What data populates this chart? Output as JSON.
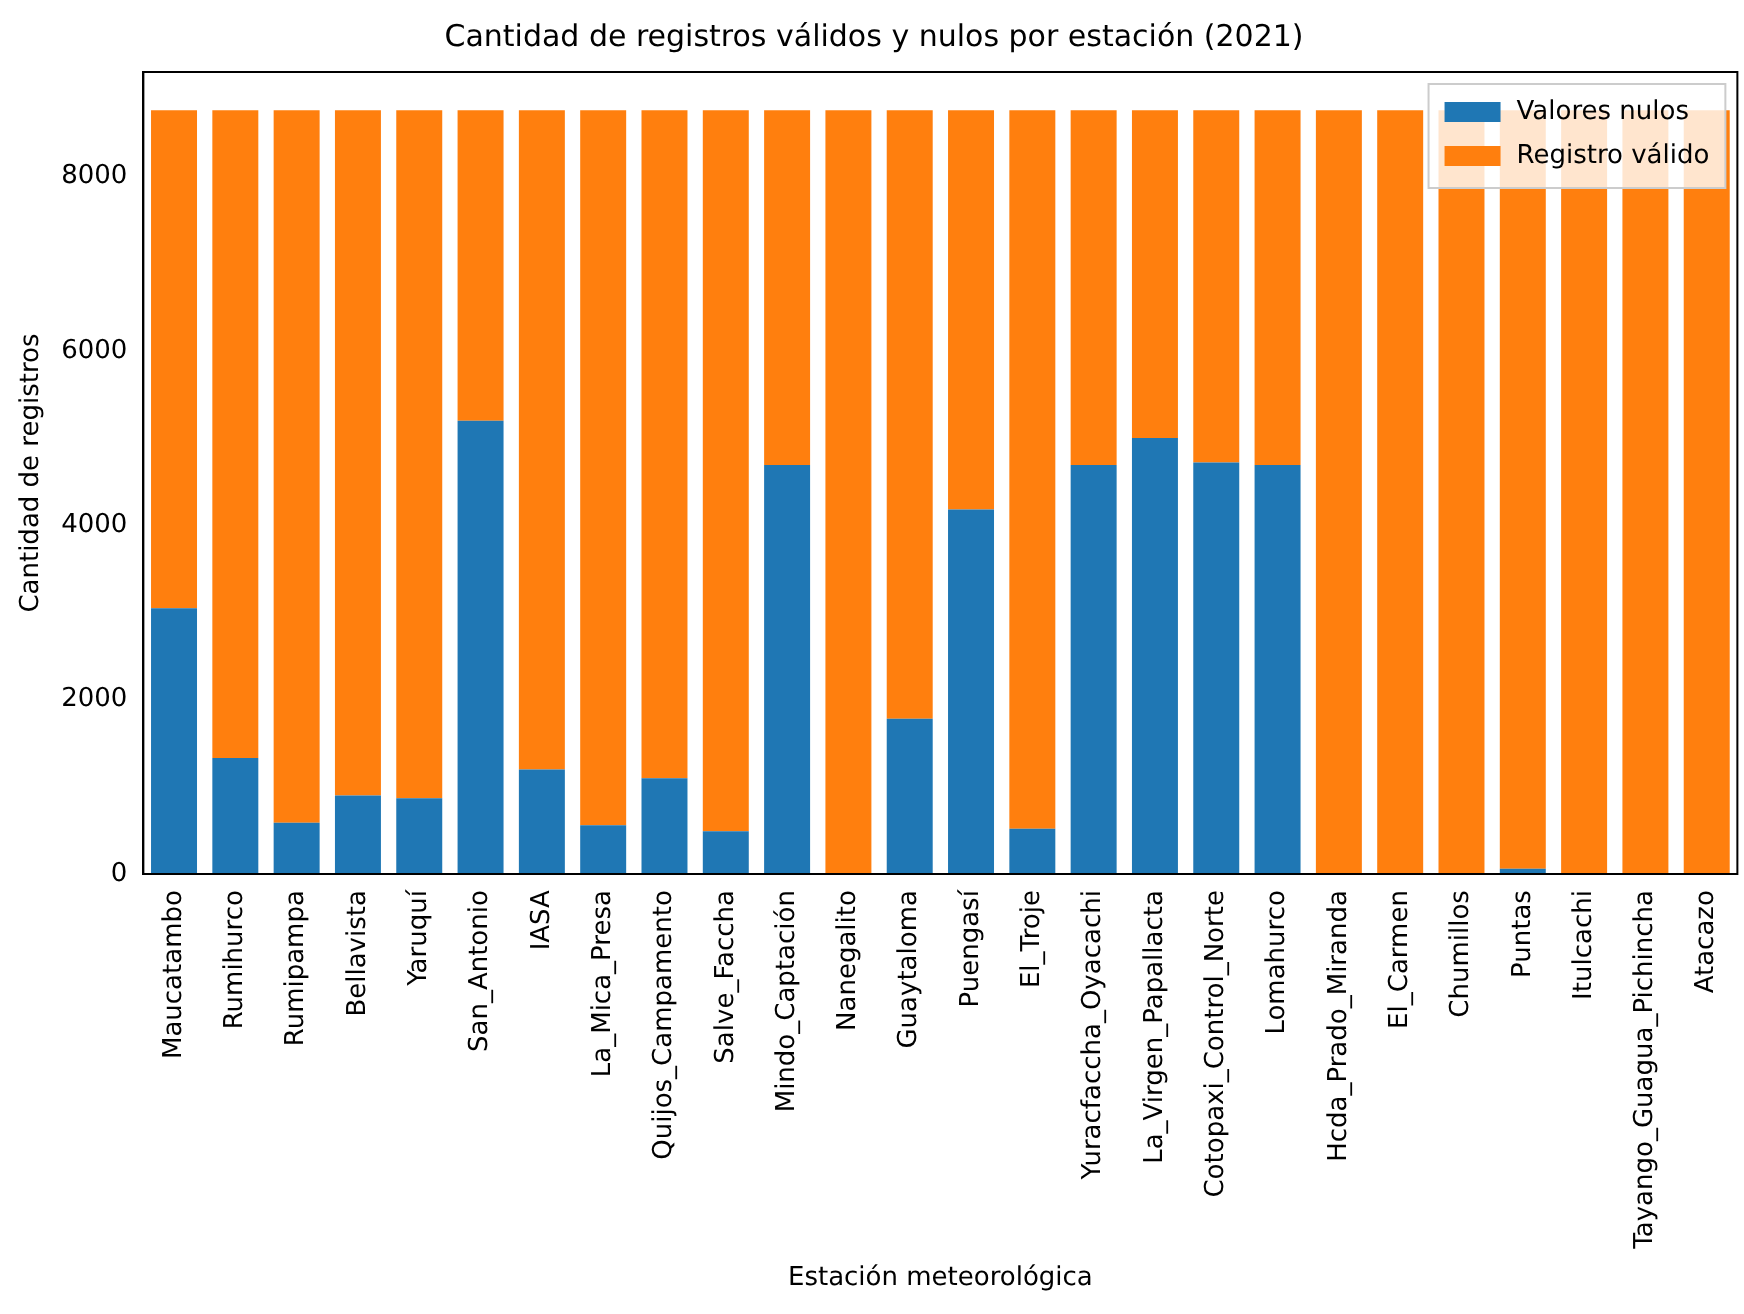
{
  "chart_data": {
    "type": "bar",
    "title": "Cantidad de registros válidos y nulos por estación (2021)",
    "xlabel": "Estación meteorológica",
    "ylabel": "Cantidad de registros",
    "categories": [
      "Maucatambo",
      "Rumihurco",
      "Rumipampa",
      "Bellavista",
      "Yaruquí",
      "San_Antonio",
      "IASA",
      "La_Mica_Presa",
      "Quijos_Campamento",
      "Salve_Faccha",
      "Mindo_Captación",
      "Nanegalito",
      "Guaytaloma",
      "Puengasí",
      "El_Troje",
      "Yuracfaccha_Oyacachi",
      "La_Virgen_Papallacta",
      "Cotopaxi_Control_Norte",
      "Lomahurco",
      "Hcda_Prado_Miranda",
      "El_Carmen",
      "Chumillos",
      "Puntas",
      "Itulcachi",
      "Tayango_Guagua_Pichincha",
      "Atacazo"
    ],
    "series": [
      {
        "name": "Valores nulos",
        "color": "#1f77b4",
        "values": [
          3050,
          1330,
          590,
          900,
          870,
          5200,
          1200,
          560,
          1100,
          490,
          4690,
          0,
          1780,
          4180,
          520,
          4690,
          5000,
          4720,
          4690,
          0,
          0,
          0,
          60,
          0,
          0,
          0
        ]
      },
      {
        "name": "Registro válido",
        "color": "#ff7f0e",
        "values": [
          5710,
          7430,
          8170,
          7860,
          7890,
          3560,
          7560,
          8200,
          7660,
          8270,
          4070,
          8760,
          6980,
          4580,
          8240,
          4070,
          3760,
          4040,
          4070,
          8760,
          8760,
          8760,
          8700,
          8760,
          8760,
          8760
        ]
      }
    ],
    "stacked": true,
    "ylim": [
      0,
      9198
    ],
    "yticks": [
      0,
      2000,
      4000,
      6000,
      8000
    ],
    "grid": false,
    "legend": "top right"
  }
}
